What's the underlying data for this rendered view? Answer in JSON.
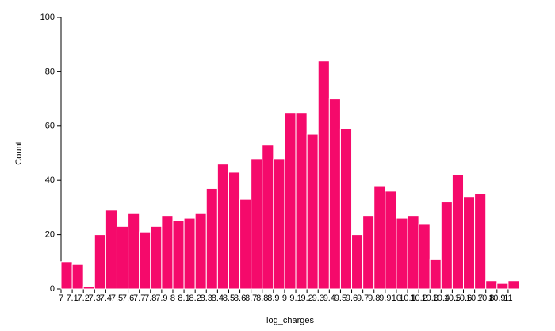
{
  "chart_data": {
    "type": "histogram",
    "x_label": "log_charges",
    "y_label": "Count",
    "color": "#f50a6b",
    "bins": [
      7,
      7.1,
      7.2,
      7.3,
      7.4,
      7.5,
      7.6,
      7.7,
      7.8,
      7.9,
      8,
      8.1,
      8.2,
      8.3,
      8.4,
      8.5,
      8.6,
      8.7,
      8.8,
      8.9,
      9,
      9.1,
      9.2,
      9.3,
      9.4,
      9.5,
      9.6,
      9.7,
      9.8,
      9.9,
      10,
      10.1,
      10.2,
      10.3,
      10.4,
      10.5,
      10.6,
      10.7,
      10.8,
      10.9,
      11,
      11.1
    ],
    "counts": [
      10,
      9,
      1,
      20,
      29,
      23,
      28,
      21,
      23,
      27,
      25,
      26,
      28,
      37,
      46,
      43,
      33,
      48,
      53,
      48,
      65,
      65,
      57,
      84,
      70,
      59,
      20,
      27,
      38,
      36,
      26,
      27,
      24,
      11,
      32,
      42,
      34,
      35,
      3,
      2,
      3
    ],
    "xlim": [
      7,
      11.1
    ],
    "xticks": [
      7,
      7.1,
      7.2,
      7.3,
      7.4,
      7.5,
      7.6,
      7.7,
      7.8,
      7.9,
      8,
      8.1,
      8.2,
      8.3,
      8.4,
      8.5,
      8.6,
      8.7,
      8.8,
      8.9,
      9,
      9.1,
      9.2,
      9.3,
      9.4,
      9.5,
      9.6,
      9.7,
      9.8,
      9.9,
      10,
      10.1,
      10.2,
      10.3,
      10.4,
      10.5,
      10.6,
      10.7,
      10.8,
      10.9,
      11
    ],
    "ylim": [
      0,
      100
    ],
    "yticks": [
      0,
      20,
      40,
      60,
      80,
      100
    ],
    "grid": false
  }
}
